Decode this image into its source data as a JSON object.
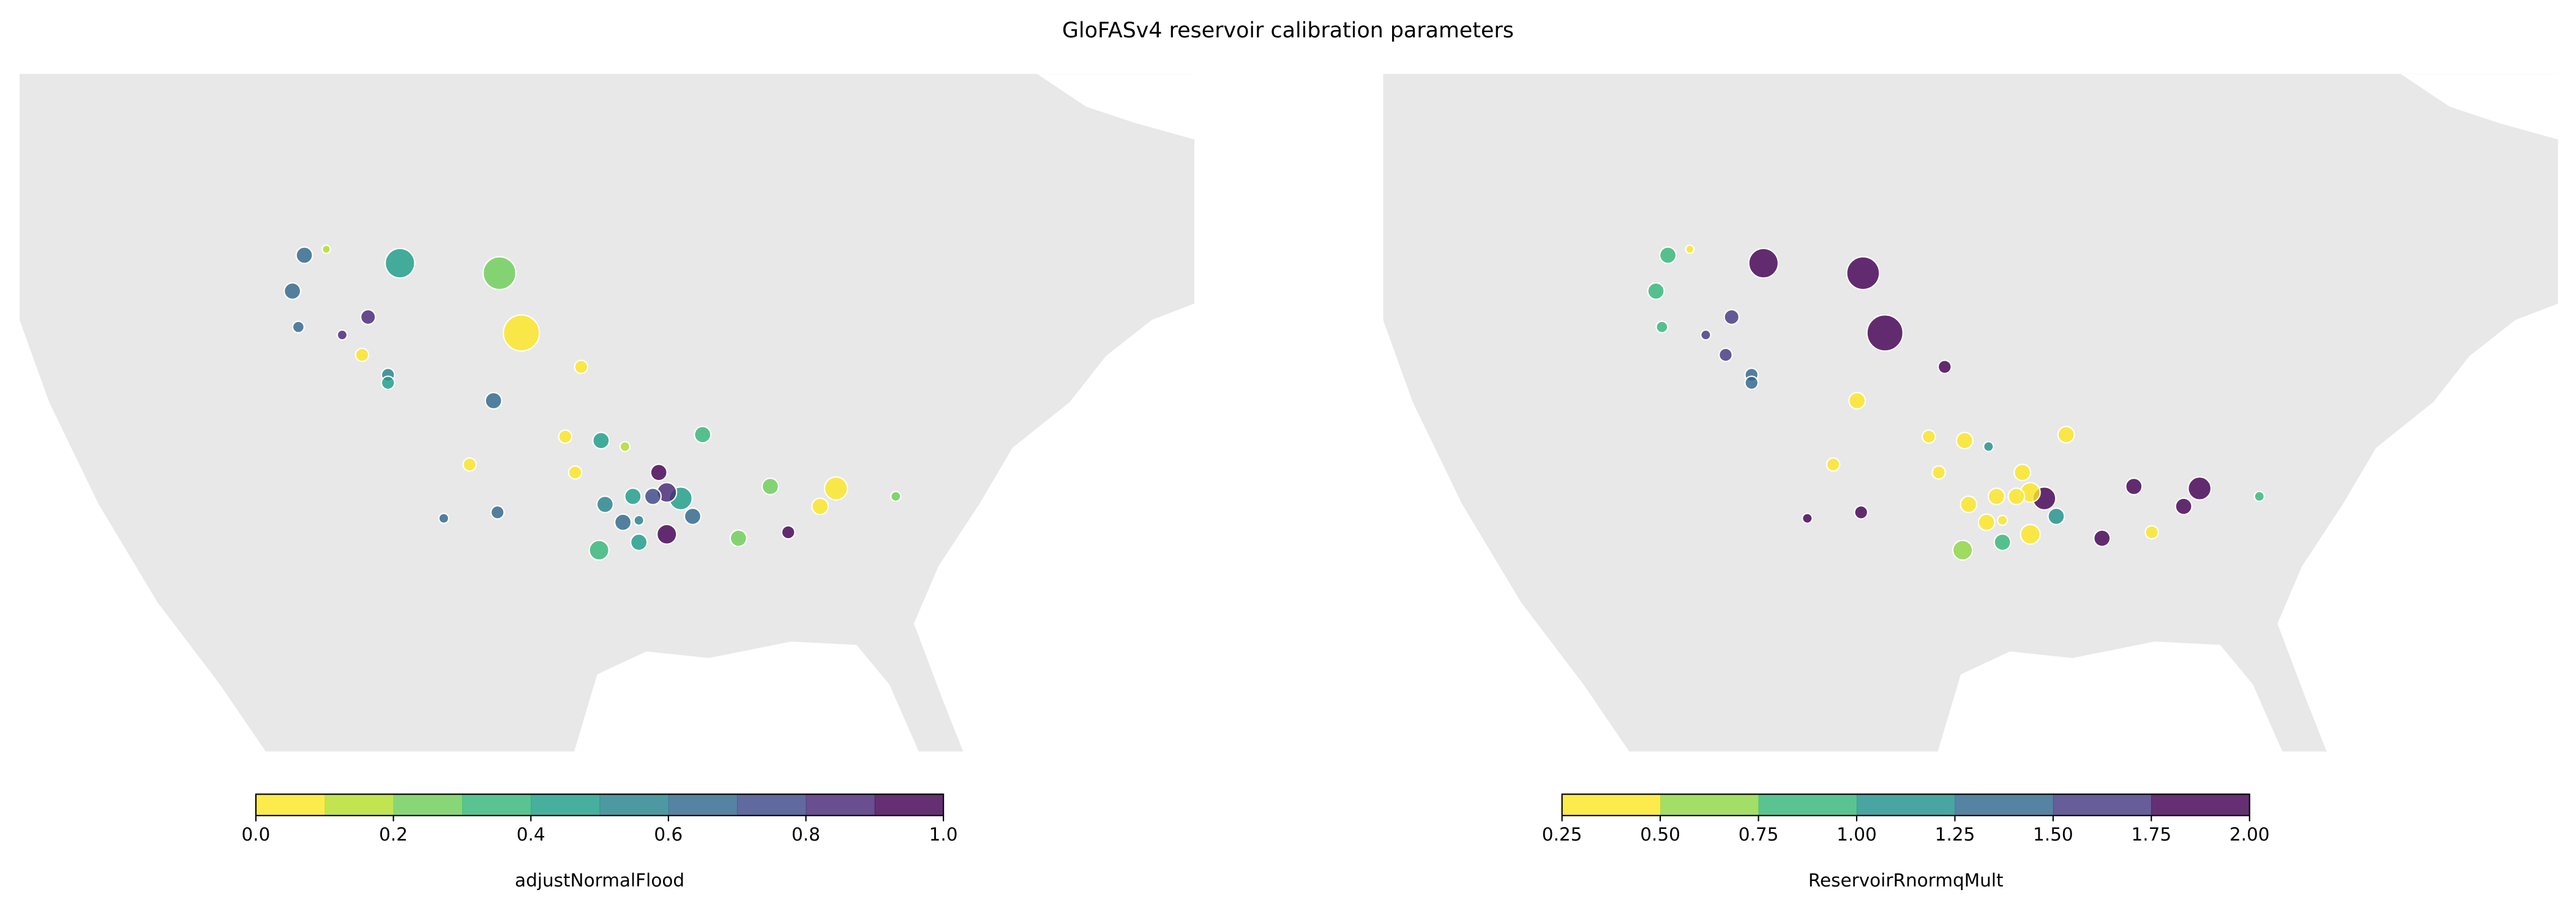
{
  "title": "GloFASv4 reservoir calibration parameters",
  "chart_data": [
    {
      "type": "scatter",
      "xlim": [
        -125,
        -66
      ],
      "ylim": [
        24,
        58
      ],
      "x": [
        -110.7,
        -109.6,
        -105.9,
        -100.9,
        -111.3,
        -107.5,
        -108.8,
        -111.0,
        -99.8,
        -107.8,
        -106.5,
        -106.5,
        -96.8,
        -101.2,
        -97.6,
        -95.8,
        -94.6,
        -90.7,
        -102.4,
        -97.1,
        -92.9,
        -87.3,
        -84.0,
        -81.0,
        -84.8,
        -93.2,
        -92.5,
        -91.8,
        -94.2,
        -95.6,
        -101.0,
        -103.7,
        -94.7,
        -93.9,
        -91.2,
        -86.4,
        -92.5,
        -88.9,
        -93.9,
        -95.9
      ],
      "y": [
        48.9,
        49.2,
        48.5,
        48.0,
        47.1,
        45.8,
        44.9,
        45.3,
        45.0,
        43.9,
        42.9,
        42.5,
        43.3,
        41.6,
        39.8,
        39.6,
        39.3,
        39.9,
        38.4,
        38.0,
        38.0,
        37.3,
        37.2,
        36.8,
        36.3,
        36.8,
        37.0,
        36.7,
        36.8,
        36.4,
        36.0,
        35.7,
        35.5,
        35.6,
        35.8,
        35.0,
        34.9,
        34.7,
        34.5,
        34.1
      ],
      "values": [
        0.65,
        0.15,
        0.45,
        0.2,
        0.65,
        0.85,
        0.85,
        0.6,
        0.05,
        0.05,
        0.5,
        0.4,
        0.05,
        0.6,
        0.05,
        0.45,
        0.15,
        0.35,
        0.05,
        0.05,
        0.95,
        0.25,
        0.05,
        0.2,
        0.05,
        0.75,
        0.85,
        0.4,
        0.45,
        0.55,
        0.6,
        0.65,
        0.6,
        0.55,
        0.6,
        0.95,
        0.95,
        0.2,
        0.45,
        0.35
      ],
      "sizes": [
        5,
        2.5,
        9,
        10,
        5,
        4.5,
        3,
        3.5,
        11,
        4,
        4,
        4,
        4,
        5,
        4,
        5,
        3,
        5,
        4,
        4,
        5,
        5,
        7,
        3,
        5,
        5,
        6,
        7,
        5,
        5,
        4,
        3,
        5,
        3,
        5,
        4,
        6,
        5,
        5,
        6
      ],
      "colorbar": {
        "label": "adjustNormalFlood",
        "lim": [
          0,
          1
        ],
        "colors": [
          "#fde725",
          "#b5de2b",
          "#6ece58",
          "#35b779",
          "#1f9e89",
          "#26828e",
          "#31688e",
          "#3e4989",
          "#482878",
          "#440154"
        ],
        "ticks": [
          {
            "value": 0,
            "label": "0.0"
          },
          0.2,
          0.4,
          0.6,
          0.8,
          {
            "value": 1,
            "label": "1.0"
          }
        ]
      }
    },
    {
      "type": "scatter",
      "xlim": [
        -125,
        -66
      ],
      "ylim": [
        24,
        58
      ],
      "x": [
        -110.7,
        -109.6,
        -105.9,
        -100.9,
        -111.3,
        -107.5,
        -108.8,
        -111.0,
        -99.8,
        -107.8,
        -106.5,
        -106.5,
        -96.8,
        -101.2,
        -97.6,
        -95.8,
        -94.6,
        -90.7,
        -102.4,
        -97.1,
        -92.9,
        -87.3,
        -84.0,
        -81.0,
        -84.8,
        -93.2,
        -92.5,
        -91.8,
        -94.2,
        -95.6,
        -101.0,
        -103.7,
        -94.7,
        -93.9,
        -91.2,
        -86.4,
        -92.5,
        -88.9,
        -93.9,
        -95.9
      ],
      "y": [
        48.9,
        49.2,
        48.5,
        48.0,
        47.1,
        45.8,
        44.9,
        45.3,
        45.0,
        43.9,
        42.9,
        42.5,
        43.3,
        41.6,
        39.8,
        39.6,
        39.3,
        39.9,
        38.4,
        38.0,
        38.0,
        37.3,
        37.2,
        36.8,
        36.3,
        36.8,
        37.0,
        36.7,
        36.8,
        36.4,
        36.0,
        35.7,
        35.5,
        35.6,
        35.8,
        35.0,
        34.9,
        34.7,
        34.5,
        34.1
      ],
      "values": [
        0.8,
        0.4,
        1.9,
        1.9,
        0.8,
        1.5,
        1.5,
        0.8,
        1.9,
        1.55,
        1.3,
        1.4,
        1.9,
        0.4,
        0.4,
        0.4,
        1.1,
        0.4,
        0.4,
        0.4,
        0.4,
        1.9,
        1.9,
        0.9,
        1.9,
        0.4,
        0.4,
        2.0,
        0.4,
        0.4,
        1.9,
        1.9,
        0.4,
        0.4,
        1.2,
        0.4,
        0.4,
        1.9,
        0.9,
        0.6
      ],
      "sizes": [
        5,
        2.5,
        9,
        10,
        5,
        4.5,
        3,
        3.5,
        11,
        4,
        4,
        4,
        4,
        5,
        4,
        5,
        3,
        5,
        4,
        4,
        5,
        5,
        7,
        3,
        5,
        5,
        6,
        7,
        5,
        5,
        4,
        3,
        5,
        3,
        5,
        4,
        6,
        5,
        5,
        6
      ],
      "colorbar": {
        "label": "ReservoirRnormqMult",
        "lim": [
          0.25,
          2
        ],
        "colors": [
          "#fde725",
          "#8fd744",
          "#35b779",
          "#21918c",
          "#31688e",
          "#443983",
          "#440154"
        ],
        "ticks": [
          0.25,
          {
            "value": 0.5,
            "label": "0.50"
          },
          0.75,
          {
            "value": 1,
            "label": "1.00"
          },
          1.25,
          {
            "value": 1.5,
            "label": "1.50"
          },
          1.75,
          {
            "value": 2,
            "label": "2.00"
          }
        ]
      }
    }
  ]
}
